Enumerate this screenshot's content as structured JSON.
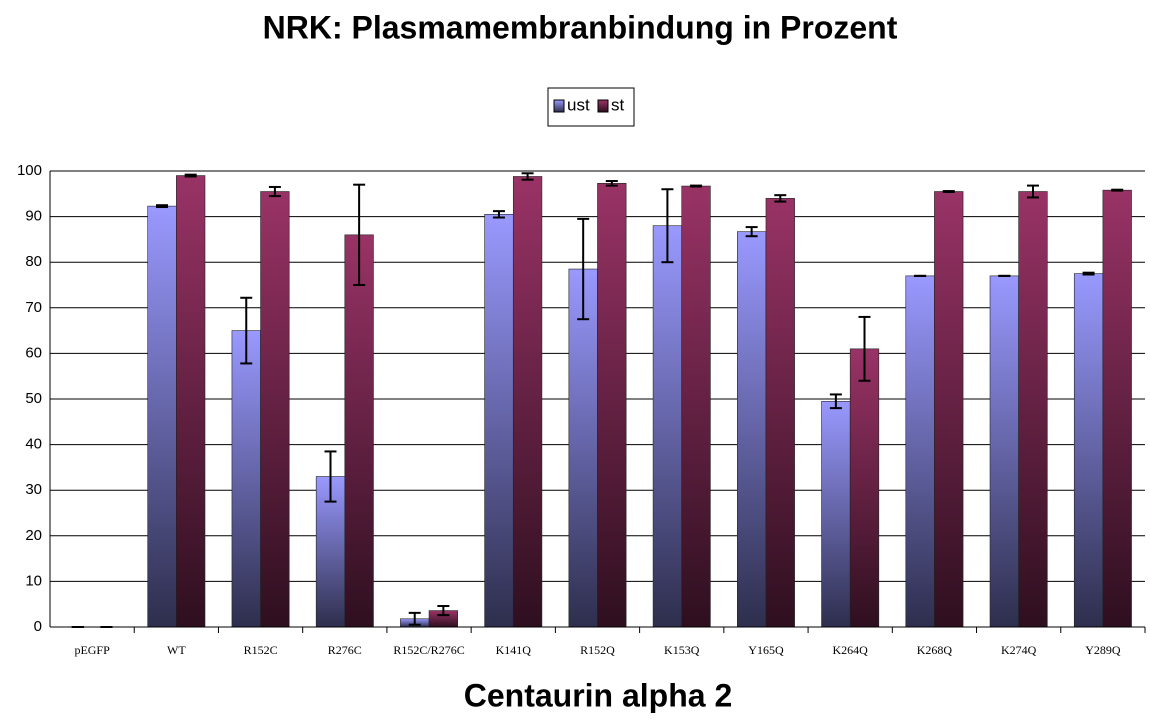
{
  "chart_data": {
    "type": "bar",
    "title": "NRK: Plasmamembranbindung in Prozent",
    "x_label": "Centaurin alpha 2",
    "categories": [
      "pEGFP",
      "WT",
      "R152C",
      "R276C",
      "R152C/R276C",
      "K141Q",
      "R152Q",
      "K153Q",
      "Y165Q",
      "K264Q",
      "K268Q",
      "K274Q",
      "Y289Q"
    ],
    "series": [
      {
        "name": "ust",
        "color": "#9999ff",
        "values": [
          0,
          92.3,
          65,
          33,
          1.8,
          90.5,
          78.5,
          88,
          86.7,
          49.5,
          77,
          77,
          77.5
        ],
        "errors": [
          0,
          0.2,
          7.2,
          5.5,
          1.3,
          0.7,
          11,
          8,
          1,
          1.5,
          0,
          0,
          0.2
        ]
      },
      {
        "name": "st",
        "color": "#993366",
        "values": [
          0,
          99,
          95.5,
          86,
          3.6,
          98.8,
          97.3,
          96.7,
          94,
          61,
          95.5,
          95.5,
          95.8
        ],
        "errors": [
          0,
          0.2,
          1,
          11,
          1,
          0.7,
          0.5,
          0.1,
          0.7,
          7,
          0.1,
          1.3,
          0.1
        ]
      }
    ],
    "ylim": [
      0,
      100
    ],
    "yticks": [
      0,
      10,
      20,
      30,
      40,
      50,
      60,
      70,
      80,
      90,
      100
    ],
    "grid": true,
    "legend": "top"
  }
}
